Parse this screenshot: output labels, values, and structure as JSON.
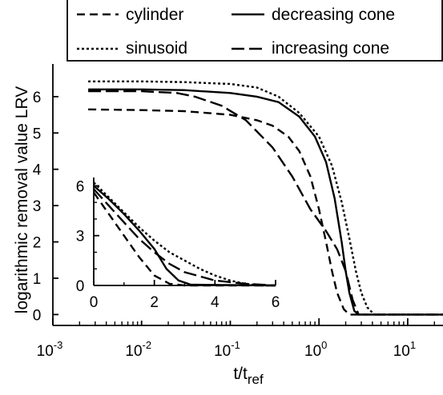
{
  "chart_data": [
    {
      "type": "line",
      "title": "",
      "xlabel": "t/t",
      "xlabel_sub": "ref",
      "ylabel": "logarithmic removal value LRV",
      "xscale": "log",
      "xlim": [
        0.001,
        25
      ],
      "ylim": [
        -0.3,
        6.9
      ],
      "grid": false,
      "legend_placement": "top-right",
      "x_ticks": [
        {
          "base": "10",
          "exp": "-3"
        },
        {
          "base": "10",
          "exp": "-2"
        },
        {
          "base": "10",
          "exp": "-1"
        },
        {
          "base": "10",
          "exp": "0"
        },
        {
          "base": "10",
          "exp": "1"
        }
      ],
      "y_ticks": [
        "0",
        "1",
        "2",
        "3",
        "4",
        "5",
        "6"
      ],
      "series": [
        {
          "name": "cylinder",
          "dash": "dashed",
          "points": [
            [
              0.0025,
              5.65
            ],
            [
              0.01,
              5.63
            ],
            [
              0.03,
              5.6
            ],
            [
              0.1,
              5.5
            ],
            [
              0.2,
              5.35
            ],
            [
              0.3,
              5.2
            ],
            [
              0.45,
              4.9
            ],
            [
              0.6,
              4.5
            ],
            [
              0.8,
              3.8
            ],
            [
              1.0,
              2.9
            ],
            [
              1.2,
              2.0
            ],
            [
              1.4,
              1.2
            ],
            [
              1.6,
              0.6
            ],
            [
              1.9,
              0.15
            ],
            [
              2.2,
              0.0
            ],
            [
              25,
              0.0
            ]
          ]
        },
        {
          "name": "sinusoid",
          "dash": "dotted",
          "points": [
            [
              0.0025,
              6.42
            ],
            [
              0.01,
              6.42
            ],
            [
              0.03,
              6.4
            ],
            [
              0.1,
              6.35
            ],
            [
              0.2,
              6.25
            ],
            [
              0.35,
              6.0
            ],
            [
              0.6,
              5.55
            ],
            [
              1.0,
              4.9
            ],
            [
              1.4,
              4.1
            ],
            [
              1.8,
              3.1
            ],
            [
              2.2,
              2.1
            ],
            [
              2.6,
              1.2
            ],
            [
              3.0,
              0.6
            ],
            [
              3.5,
              0.2
            ],
            [
              4.2,
              0.0
            ],
            [
              25,
              0.0
            ]
          ]
        },
        {
          "name": "decreasing cone",
          "dash": "solid",
          "points": [
            [
              0.0025,
              6.2
            ],
            [
              0.01,
              6.2
            ],
            [
              0.03,
              6.18
            ],
            [
              0.1,
              6.1
            ],
            [
              0.2,
              6.0
            ],
            [
              0.35,
              5.85
            ],
            [
              0.6,
              5.45
            ],
            [
              0.9,
              4.9
            ],
            [
              1.2,
              4.2
            ],
            [
              1.5,
              3.2
            ],
            [
              1.8,
              2.0
            ],
            [
              2.0,
              1.2
            ],
            [
              2.2,
              0.6
            ],
            [
              2.5,
              0.1
            ],
            [
              2.8,
              0.0
            ],
            [
              25,
              0.0
            ]
          ]
        },
        {
          "name": "increasing cone",
          "dash": "longdash",
          "points": [
            [
              0.0025,
              6.15
            ],
            [
              0.01,
              6.15
            ],
            [
              0.025,
              6.1
            ],
            [
              0.04,
              6.0
            ],
            [
              0.08,
              5.75
            ],
            [
              0.15,
              5.35
            ],
            [
              0.3,
              4.6
            ],
            [
              0.5,
              3.8
            ],
            [
              0.8,
              2.9
            ],
            [
              1.2,
              2.3
            ],
            [
              1.6,
              1.8
            ],
            [
              2.0,
              1.2
            ],
            [
              2.4,
              0.4
            ],
            [
              2.8,
              0.0
            ],
            [
              25,
              0.0
            ]
          ]
        }
      ]
    },
    {
      "type": "line",
      "title": "",
      "xlabel": "",
      "ylabel": "",
      "xscale": "linear",
      "xlim": [
        0,
        6
      ],
      "ylim": [
        0,
        6.5
      ],
      "x_ticks": [
        "0",
        "2",
        "4",
        "6"
      ],
      "y_ticks": [
        "0",
        "3",
        "6"
      ],
      "series": [
        {
          "name": "cylinder",
          "dash": "dashed",
          "points": [
            [
              0,
              5.6
            ],
            [
              0.5,
              4.3
            ],
            [
              1.0,
              3.0
            ],
            [
              1.5,
              1.7
            ],
            [
              2.0,
              0.6
            ],
            [
              2.5,
              0.1
            ],
            [
              3.0,
              0.0
            ],
            [
              6.0,
              0.0
            ]
          ]
        },
        {
          "name": "sinusoid",
          "dash": "dotted",
          "points": [
            [
              0,
              6.2
            ],
            [
              0.5,
              5.3
            ],
            [
              1.0,
              4.4
            ],
            [
              1.5,
              3.5
            ],
            [
              2.0,
              2.7
            ],
            [
              2.5,
              2.0
            ],
            [
              3.0,
              1.5
            ],
            [
              3.5,
              1.0
            ],
            [
              4.0,
              0.6
            ],
            [
              4.5,
              0.3
            ],
            [
              5.0,
              0.1
            ],
            [
              5.5,
              0.0
            ],
            [
              6.0,
              0.0
            ]
          ]
        },
        {
          "name": "decreasing cone",
          "dash": "solid",
          "points": [
            [
              0,
              6.0
            ],
            [
              0.5,
              5.2
            ],
            [
              1.0,
              4.3
            ],
            [
              1.5,
              3.3
            ],
            [
              2.0,
              2.2
            ],
            [
              2.4,
              1.0
            ],
            [
              2.8,
              0.3
            ],
            [
              3.2,
              0.05
            ],
            [
              6.0,
              0.0
            ]
          ]
        },
        {
          "name": "increasing cone",
          "dash": "longdash",
          "points": [
            [
              0,
              5.8
            ],
            [
              0.5,
              4.8
            ],
            [
              1.0,
              3.8
            ],
            [
              1.5,
              2.8
            ],
            [
              2.0,
              2.0
            ],
            [
              2.5,
              1.3
            ],
            [
              3.0,
              0.8
            ],
            [
              4.0,
              0.3
            ],
            [
              5.0,
              0.1
            ],
            [
              6.0,
              0.0
            ]
          ]
        }
      ]
    }
  ]
}
